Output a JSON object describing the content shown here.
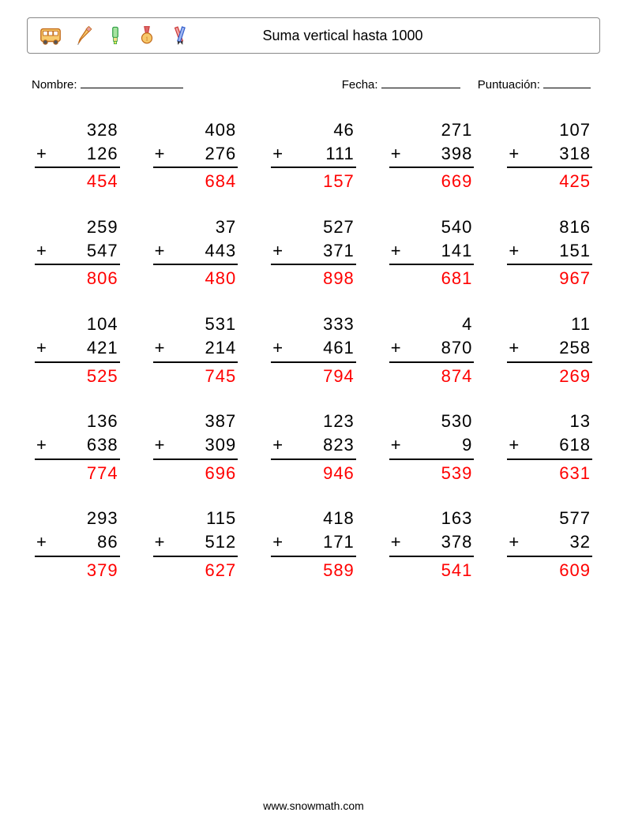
{
  "page": {
    "title": "Suma vertical hasta 1000",
    "name_label": "Nombre:",
    "date_label": "Fecha:",
    "score_label": "Puntuación:",
    "footer": "www.snowmath.com",
    "background_color": "#ffffff",
    "text_color": "#000000",
    "answer_color": "#ff0000",
    "rule_color": "#000000",
    "font_family": "Verdana",
    "number_fontsize": 22,
    "title_fontsize": 18,
    "meta_fontsize": 15,
    "blank_widths": {
      "name": 130,
      "date": 100,
      "score": 60
    }
  },
  "icons": [
    {
      "name": "bus-icon",
      "stroke": "#c26a1a",
      "fill": "#f7c96b"
    },
    {
      "name": "pencil-icon",
      "stroke": "#c26a1a",
      "fill": "#f7c96b"
    },
    {
      "name": "highlighter-icon",
      "stroke": "#2e9e44",
      "fill": "#a7e3a0"
    },
    {
      "name": "medal-icon",
      "stroke": "#c93434",
      "fill": "#f7c96b"
    },
    {
      "name": "pencils-icon",
      "stroke1": "#c93434",
      "stroke2": "#2e5ac9"
    }
  ],
  "grid": {
    "cols": 5,
    "rows": 5,
    "col_gap": 42,
    "row_gap": 28
  },
  "problems": [
    {
      "a": 328,
      "b": 126,
      "ans": 454
    },
    {
      "a": 408,
      "b": 276,
      "ans": 684
    },
    {
      "a": 46,
      "b": 111,
      "ans": 157
    },
    {
      "a": 271,
      "b": 398,
      "ans": 669
    },
    {
      "a": 107,
      "b": 318,
      "ans": 425
    },
    {
      "a": 259,
      "b": 547,
      "ans": 806
    },
    {
      "a": 37,
      "b": 443,
      "ans": 480
    },
    {
      "a": 527,
      "b": 371,
      "ans": 898
    },
    {
      "a": 540,
      "b": 141,
      "ans": 681
    },
    {
      "a": 816,
      "b": 151,
      "ans": 967
    },
    {
      "a": 104,
      "b": 421,
      "ans": 525
    },
    {
      "a": 531,
      "b": 214,
      "ans": 745
    },
    {
      "a": 333,
      "b": 461,
      "ans": 794
    },
    {
      "a": 4,
      "b": 870,
      "ans": 874
    },
    {
      "a": 11,
      "b": 258,
      "ans": 269
    },
    {
      "a": 136,
      "b": 638,
      "ans": 774
    },
    {
      "a": 387,
      "b": 309,
      "ans": 696
    },
    {
      "a": 123,
      "b": 823,
      "ans": 946
    },
    {
      "a": 530,
      "b": 9,
      "ans": 539
    },
    {
      "a": 13,
      "b": 618,
      "ans": 631
    },
    {
      "a": 293,
      "b": 86,
      "ans": 379
    },
    {
      "a": 115,
      "b": 512,
      "ans": 627
    },
    {
      "a": 418,
      "b": 171,
      "ans": 589
    },
    {
      "a": 163,
      "b": 378,
      "ans": 541
    },
    {
      "a": 577,
      "b": 32,
      "ans": 609
    }
  ]
}
